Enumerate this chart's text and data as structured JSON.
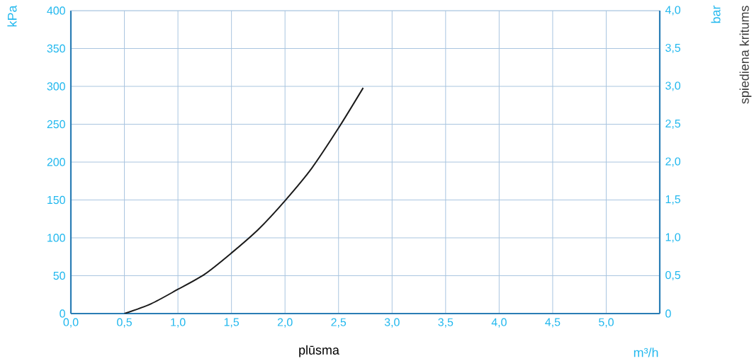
{
  "chart_data": {
    "type": "line",
    "xlabel": "plūsma",
    "ylabel": "kPa",
    "y2label": "bar",
    "annotations": [
      "spiediena kritums",
      "m³/h"
    ],
    "x": [
      0.5,
      0.75,
      1.0,
      1.25,
      1.5,
      1.75,
      2.0,
      2.25,
      2.5,
      2.73
    ],
    "series": [
      {
        "color": "#1a1a1a",
        "values": [
          0,
          13,
          32,
          52,
          80,
          111,
          149,
          192,
          245,
          298
        ]
      }
    ],
    "xlim": [
      0,
      5.5
    ],
    "xticks": [
      {
        "value": 0,
        "label": "0,0"
      },
      {
        "value": 0.5,
        "label": "0,5"
      },
      {
        "value": 1,
        "label": "1,0"
      },
      {
        "value": 1.5,
        "label": "1,5"
      },
      {
        "value": 2,
        "label": "2,0"
      },
      {
        "value": 2.5,
        "label": "2,5"
      },
      {
        "value": 3,
        "label": "3,0"
      },
      {
        "value": 3.5,
        "label": "3,5"
      },
      {
        "value": 4,
        "label": "4,0"
      },
      {
        "value": 4.5,
        "label": "4,5"
      },
      {
        "value": 5,
        "label": "5,0"
      },
      {
        "value": 5.5,
        "label": null
      }
    ],
    "ylim": [
      0,
      400
    ],
    "yticks": [
      0,
      50,
      100,
      150,
      200,
      250,
      300,
      350,
      400
    ],
    "y2lim": [
      0,
      4
    ],
    "y2ticks": [
      0,
      {
        "value": 0.5,
        "label": "0,5"
      },
      {
        "value": 1,
        "label": "1,0"
      },
      {
        "value": 1.5,
        "label": "1,5"
      },
      {
        "value": 2,
        "label": "2,0"
      },
      {
        "value": 2.5,
        "label": "2,5"
      },
      {
        "value": 3,
        "label": "3,0"
      },
      {
        "value": 3.5,
        "label": "3,5"
      },
      {
        "value": 4,
        "label": "4,0"
      }
    ],
    "grid": true,
    "marker": "none",
    "line_style": "solid"
  }
}
